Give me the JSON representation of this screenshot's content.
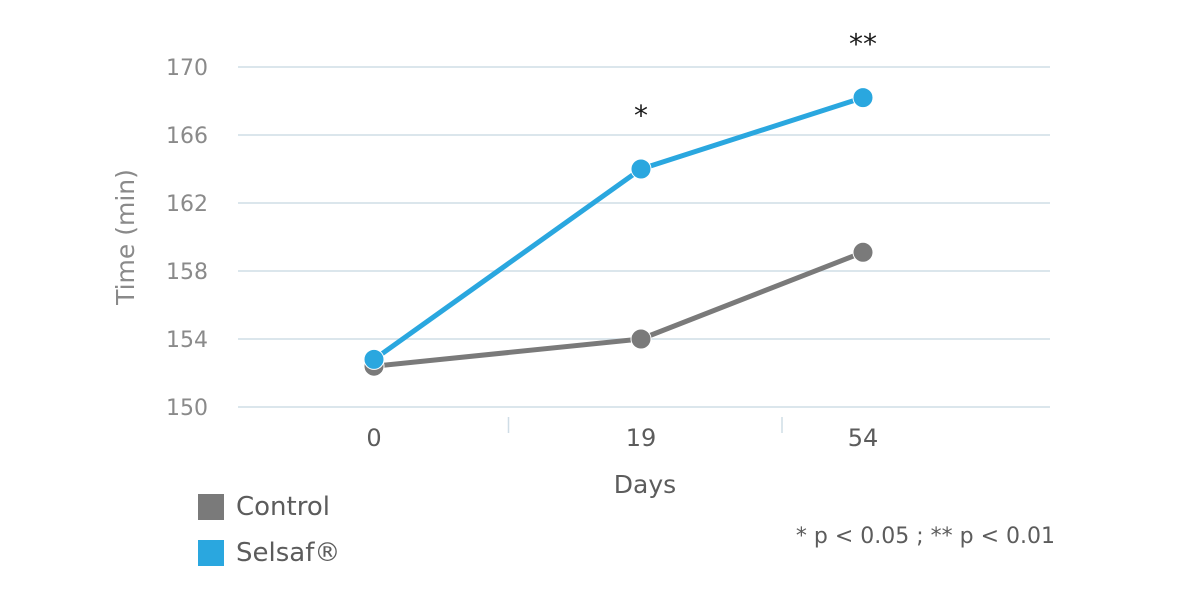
{
  "chart_data": {
    "type": "line",
    "ylabel": "Time (min)",
    "xlabel": "Days",
    "categories": [
      "0",
      "19",
      "54"
    ],
    "ylim": [
      150,
      170
    ],
    "yticks": [
      150,
      154,
      158,
      162,
      166,
      170
    ],
    "grid": true,
    "series": [
      {
        "name": "Control",
        "color": "#7a7a7a",
        "values": [
          152.4,
          154.0,
          159.1
        ]
      },
      {
        "name": "Selsaf®",
        "color": "#2aa7df",
        "values": [
          152.8,
          164.0,
          168.2
        ]
      }
    ],
    "annotations": [
      "",
      "*",
      "**"
    ],
    "legend_position": "bottom-left"
  },
  "footnote": "* p < 0.05 ; ** p < 0.01"
}
